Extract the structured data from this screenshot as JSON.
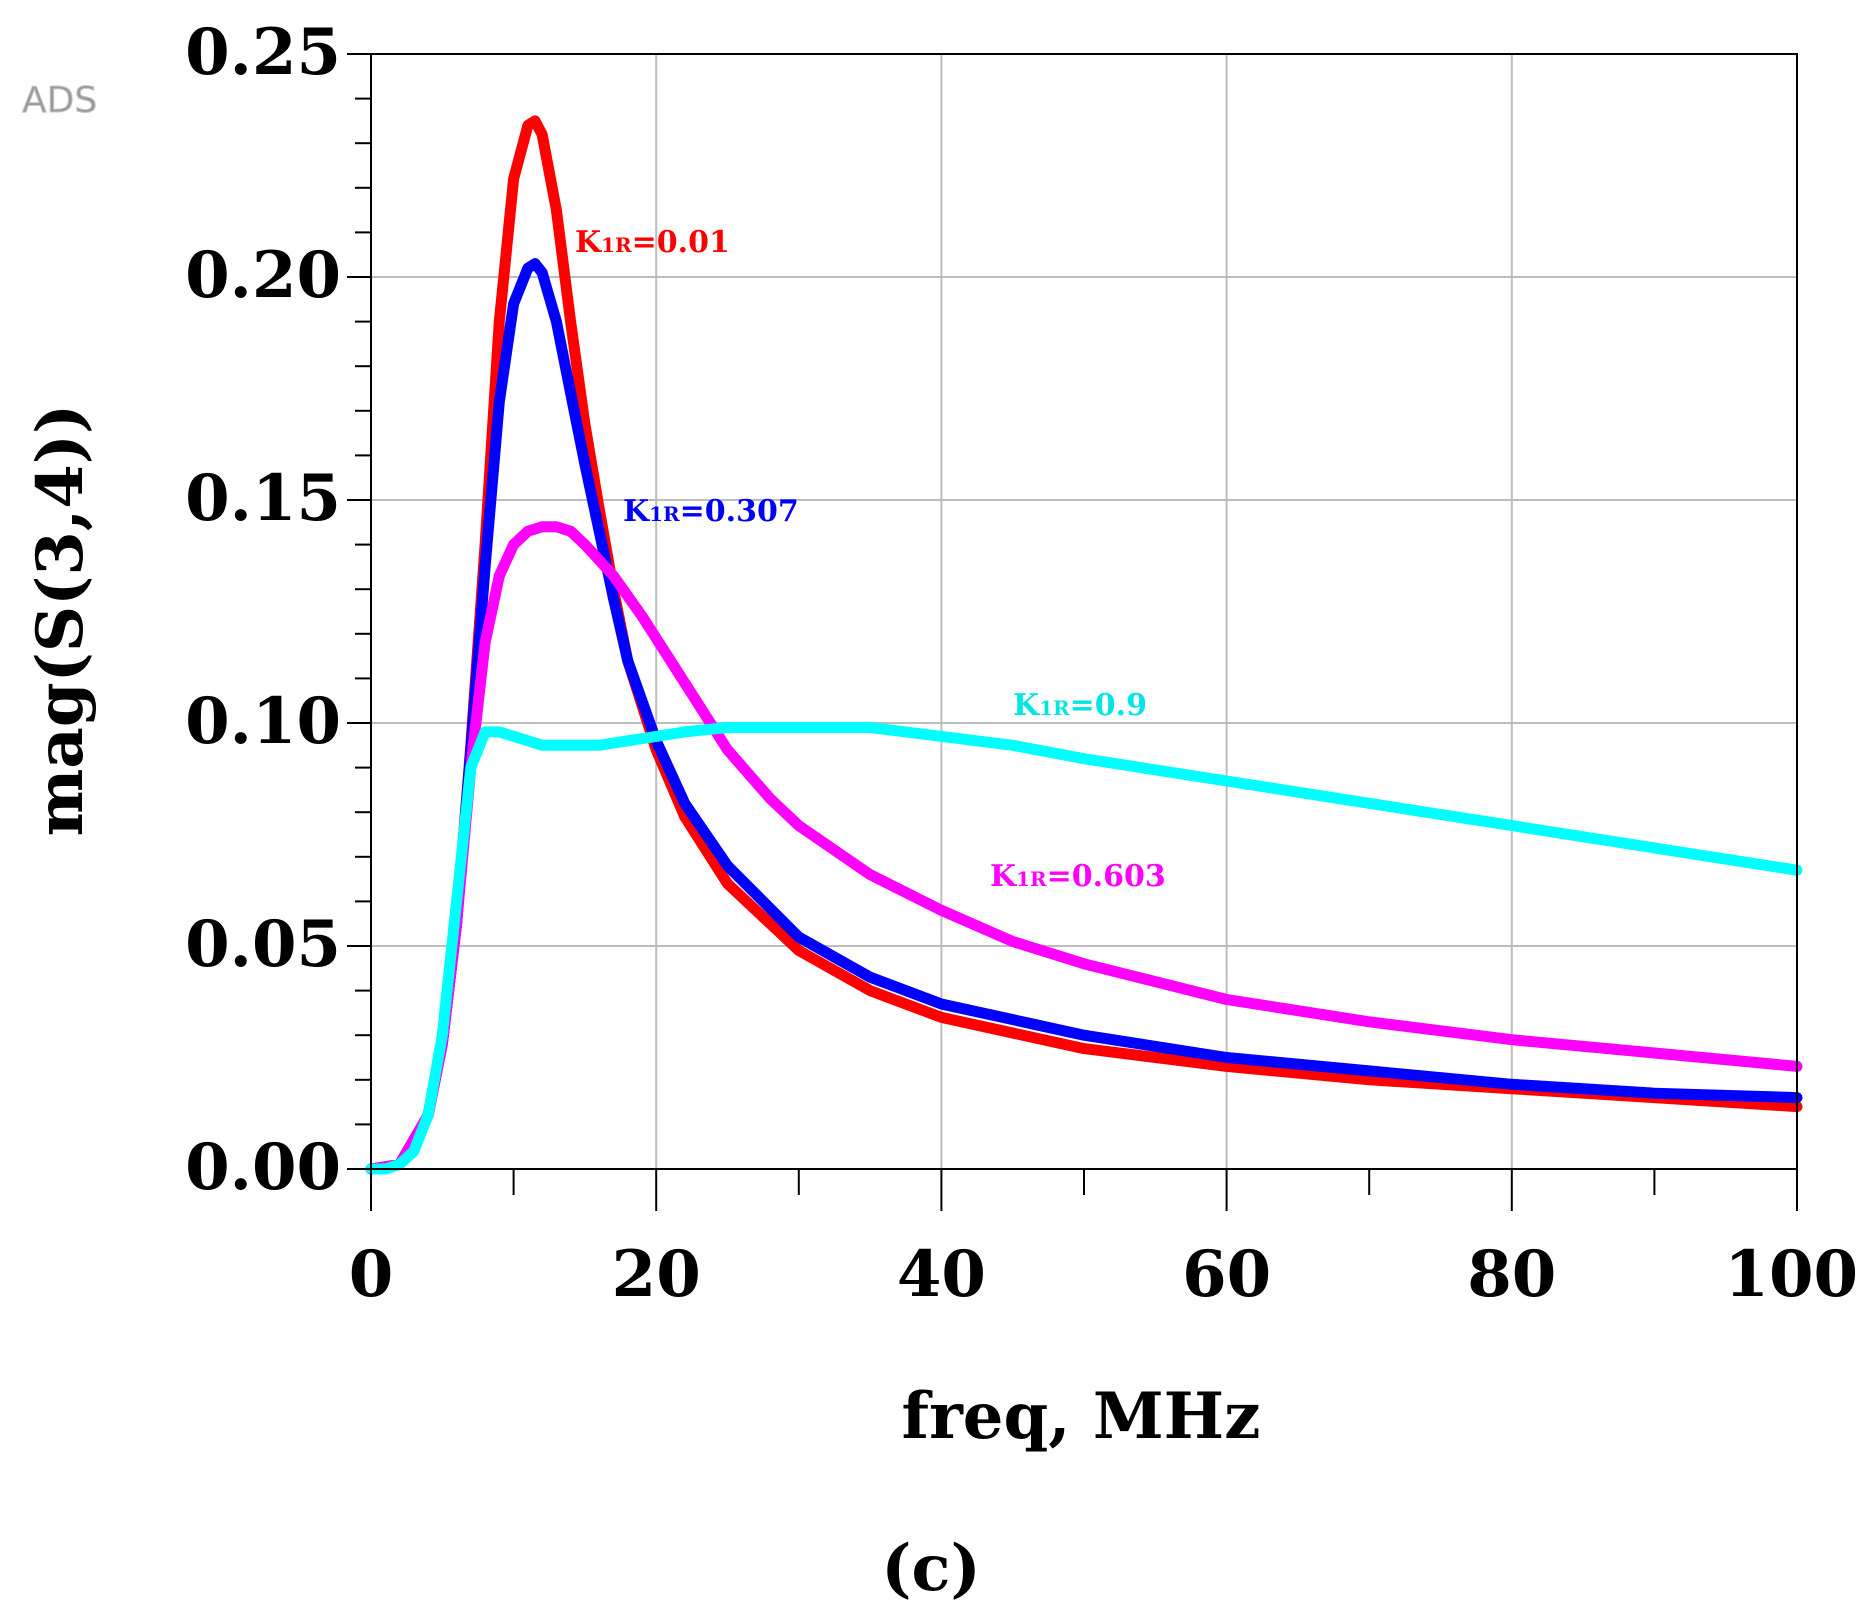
{
  "watermark": "ADS",
  "panel_label": "(c)",
  "chart_data": {
    "type": "line",
    "title": "",
    "xlabel": "freq, MHz",
    "ylabel": "mag(S(3,4))",
    "xlim": [
      0,
      100
    ],
    "ylim": [
      0,
      0.25
    ],
    "xticks": [
      0,
      20,
      40,
      60,
      80,
      100
    ],
    "xtick_labels": [
      "0",
      "20",
      "40",
      "60",
      "80",
      "100"
    ],
    "yticks": [
      0,
      0.05,
      0.1,
      0.15,
      0.2,
      0.25
    ],
    "ytick_labels": [
      "0.00",
      "0.05",
      "0.10",
      "0.15",
      "0.20",
      "0.25"
    ],
    "x_minor_step": 10,
    "y_minor_step": 0.01,
    "grid": true,
    "series": [
      {
        "name": "K1R=0.01",
        "label_main": "K",
        "label_sub": "1R",
        "label_value": "=0.01",
        "color": "#ff0000",
        "x": [
          0,
          2,
          4,
          5,
          6,
          7,
          8,
          9,
          10,
          11,
          11.5,
          12,
          13,
          14,
          15,
          16,
          17,
          18,
          20,
          22,
          25,
          30,
          35,
          40,
          50,
          60,
          70,
          80,
          90,
          100
        ],
        "y": [
          0,
          0.001,
          0.012,
          0.028,
          0.055,
          0.095,
          0.14,
          0.19,
          0.222,
          0.234,
          0.235,
          0.232,
          0.215,
          0.19,
          0.167,
          0.148,
          0.13,
          0.114,
          0.094,
          0.079,
          0.064,
          0.049,
          0.04,
          0.034,
          0.027,
          0.023,
          0.02,
          0.018,
          0.016,
          0.014
        ]
      },
      {
        "name": "K1R=0.307",
        "label_main": "K",
        "label_sub": "1R",
        "label_value": "=0.307",
        "color": "#0000ff",
        "x": [
          0,
          2,
          4,
          5,
          6,
          7,
          8,
          9,
          10,
          11,
          11.5,
          12,
          13,
          14,
          15,
          16,
          17,
          18,
          20,
          22,
          25,
          30,
          35,
          40,
          50,
          60,
          70,
          80,
          90,
          100
        ],
        "y": [
          0,
          0.001,
          0.012,
          0.028,
          0.055,
          0.094,
          0.135,
          0.172,
          0.194,
          0.202,
          0.203,
          0.201,
          0.19,
          0.174,
          0.158,
          0.143,
          0.128,
          0.114,
          0.096,
          0.082,
          0.068,
          0.052,
          0.043,
          0.037,
          0.03,
          0.025,
          0.022,
          0.019,
          0.017,
          0.016
        ]
      },
      {
        "name": "K1R=0.603",
        "label_main": "K",
        "label_sub": "1R",
        "label_value": "=0.603",
        "color": "#ff00ff",
        "x": [
          0,
          2,
          4,
          5,
          6,
          7,
          8,
          9,
          10,
          11,
          12,
          13,
          14,
          15,
          17,
          19,
          21,
          23,
          25,
          28,
          30,
          35,
          40,
          45,
          50,
          60,
          70,
          80,
          90,
          100
        ],
        "y": [
          0,
          0.001,
          0.012,
          0.028,
          0.055,
          0.09,
          0.118,
          0.133,
          0.14,
          0.143,
          0.144,
          0.144,
          0.143,
          0.14,
          0.133,
          0.124,
          0.114,
          0.104,
          0.094,
          0.083,
          0.077,
          0.066,
          0.058,
          0.051,
          0.046,
          0.038,
          0.033,
          0.029,
          0.026,
          0.023
        ]
      },
      {
        "name": "K1R=0.9",
        "label_main": "K",
        "label_sub": "1R",
        "label_value": "=0.9",
        "color": "#00ffff",
        "x": [
          0,
          1,
          2,
          3,
          4,
          5,
          6,
          7,
          8,
          9,
          10,
          11,
          12,
          14,
          16,
          18,
          20,
          22,
          25,
          30,
          35,
          40,
          45,
          50,
          60,
          70,
          80,
          90,
          100
        ],
        "y": [
          0,
          0,
          0.001,
          0.004,
          0.012,
          0.03,
          0.06,
          0.09,
          0.098,
          0.098,
          0.097,
          0.096,
          0.095,
          0.095,
          0.095,
          0.096,
          0.097,
          0.098,
          0.099,
          0.099,
          0.099,
          0.097,
          0.095,
          0.092,
          0.087,
          0.082,
          0.077,
          0.072,
          0.067
        ]
      }
    ]
  }
}
